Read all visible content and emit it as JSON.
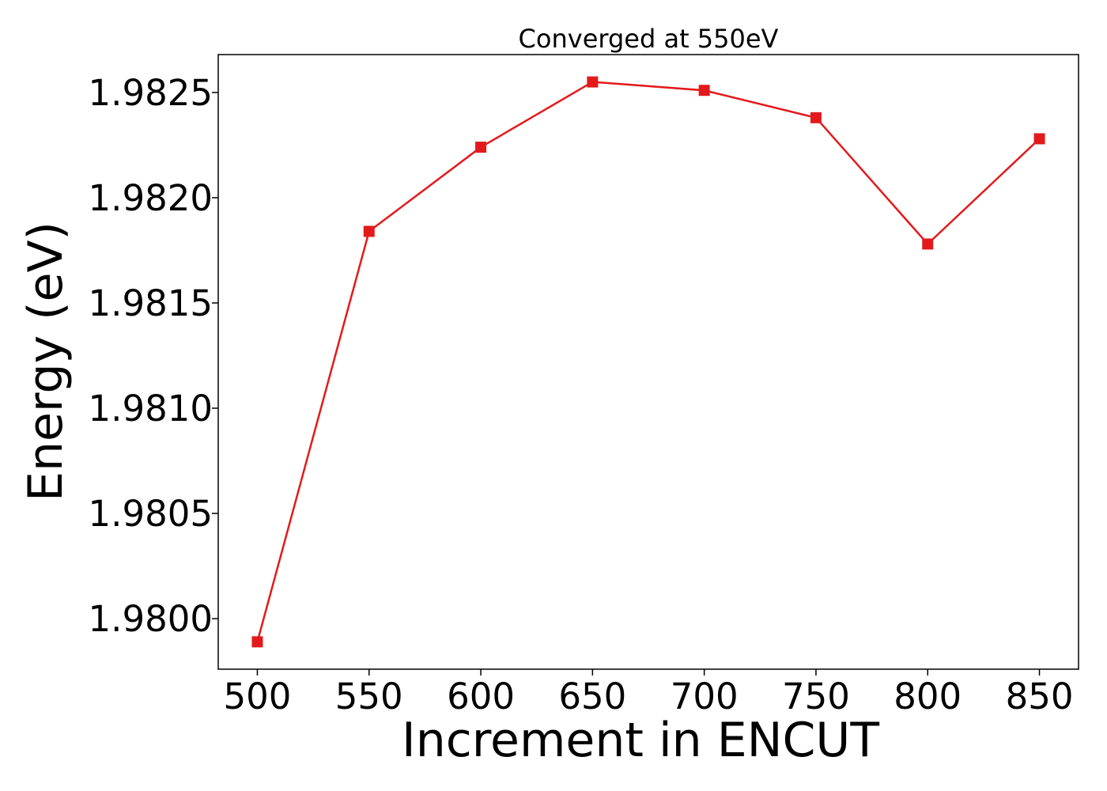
{
  "chart_data": {
    "type": "line",
    "title": "Converged at 550eV",
    "xlabel": "Increment in ENCUT",
    "ylabel": "Energy (eV)",
    "x": [
      500,
      550,
      600,
      650,
      700,
      750,
      800,
      850
    ],
    "series": [
      {
        "values": [
          1.97989,
          1.98184,
          1.98224,
          1.98255,
          1.98251,
          1.98238,
          1.98178,
          1.98228
        ],
        "color": "#e31a1c",
        "marker": "square"
      }
    ],
    "xticks": [
      "500",
      "550",
      "600",
      "650",
      "700",
      "750",
      "800",
      "850"
    ],
    "xtick_values": [
      500,
      550,
      600,
      650,
      700,
      750,
      800,
      850
    ],
    "yticks": [
      "1.9800",
      "1.9805",
      "1.9810",
      "1.9815",
      "1.9820",
      "1.9825"
    ],
    "ytick_values": [
      1.98,
      1.9805,
      1.981,
      1.9815,
      1.982,
      1.9825
    ],
    "xlim": [
      482.5,
      867.5
    ],
    "ylim": [
      1.97976,
      1.98268
    ],
    "grid": false,
    "legend": "none"
  }
}
